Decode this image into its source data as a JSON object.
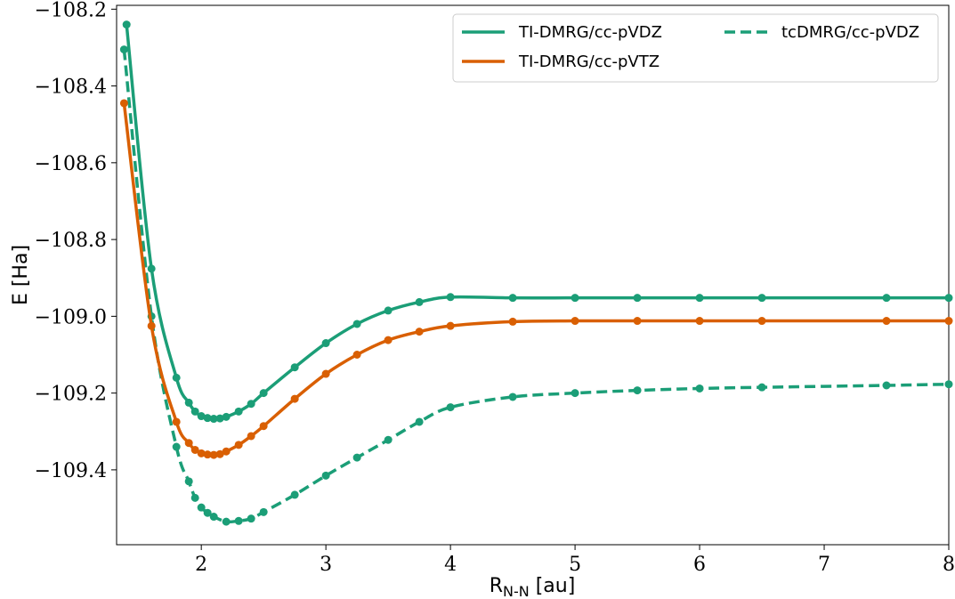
{
  "chart_data": {
    "type": "line",
    "xlabel": "R",
    "xlabel_sub": "N-N",
    "xlabel_unit": " [au]",
    "ylabel": "E [Ha]",
    "xlim": [
      1.32,
      8.0
    ],
    "ylim": [
      -109.595,
      -108.19
    ],
    "xticks": [
      2,
      3,
      4,
      5,
      6,
      7,
      8
    ],
    "yticks": [
      -108.2,
      -108.4,
      -108.6,
      -108.8,
      -109.0,
      -109.2,
      -109.4
    ],
    "ytick_labels": [
      "−108.2",
      "−108.4",
      "−108.6",
      "−108.8",
      "−109.0",
      "−109.2",
      "−109.4"
    ],
    "grid": false,
    "legend_position": "top-right",
    "series": [
      {
        "name": "TI-DMRG/cc-pVDZ",
        "color": "#1b9e77",
        "style": "solid",
        "x": [
          1.4,
          1.6,
          1.8,
          1.9,
          1.95,
          2.0,
          2.05,
          2.1,
          2.15,
          2.2,
          2.3,
          2.4,
          2.5,
          2.75,
          3.0,
          3.25,
          3.5,
          3.75,
          4.0,
          4.5,
          5.0,
          5.5,
          6.0,
          6.5,
          7.5,
          8.0
        ],
        "y": [
          -108.24,
          -108.876,
          -109.16,
          -109.225,
          -109.248,
          -109.26,
          -109.265,
          -109.267,
          -109.266,
          -109.262,
          -109.248,
          -109.228,
          -109.2,
          -109.133,
          -109.07,
          -109.02,
          -108.985,
          -108.963,
          -108.95,
          -108.952,
          -108.952,
          -108.952,
          -108.952,
          -108.952,
          -108.952,
          -108.952
        ]
      },
      {
        "name": "TI-DMRG/cc-pVTZ",
        "color": "#d95f02",
        "style": "solid",
        "x": [
          1.38,
          1.6,
          1.8,
          1.9,
          1.95,
          2.0,
          2.05,
          2.1,
          2.15,
          2.2,
          2.3,
          2.4,
          2.5,
          2.75,
          3.0,
          3.25,
          3.5,
          3.75,
          4.0,
          4.5,
          5.0,
          5.5,
          6.0,
          6.5,
          7.5,
          8.0
        ],
        "y": [
          -108.445,
          -109.025,
          -109.275,
          -109.33,
          -109.348,
          -109.357,
          -109.36,
          -109.361,
          -109.359,
          -109.352,
          -109.335,
          -109.312,
          -109.286,
          -109.215,
          -109.15,
          -109.1,
          -109.062,
          -109.04,
          -109.025,
          -109.014,
          -109.012,
          -109.012,
          -109.012,
          -109.012,
          -109.012,
          -109.012
        ]
      },
      {
        "name": "tcDMRG/cc-pVDZ",
        "color": "#1b9e77",
        "style": "dashed",
        "x": [
          1.38,
          1.6,
          1.8,
          1.9,
          1.95,
          2.0,
          2.05,
          2.1,
          2.2,
          2.3,
          2.4,
          2.5,
          2.75,
          3.0,
          3.25,
          3.5,
          3.75,
          4.0,
          4.5,
          5.0,
          5.5,
          6.0,
          6.5,
          7.5,
          8.0
        ],
        "y": [
          -108.305,
          -109.0,
          -109.34,
          -109.43,
          -109.473,
          -109.498,
          -109.512,
          -109.522,
          -109.535,
          -109.533,
          -109.527,
          -109.51,
          -109.465,
          -109.415,
          -109.368,
          -109.322,
          -109.275,
          -109.237,
          -109.21,
          -109.2,
          -109.193,
          -109.188,
          -109.185,
          -109.18,
          -109.177
        ]
      }
    ]
  }
}
